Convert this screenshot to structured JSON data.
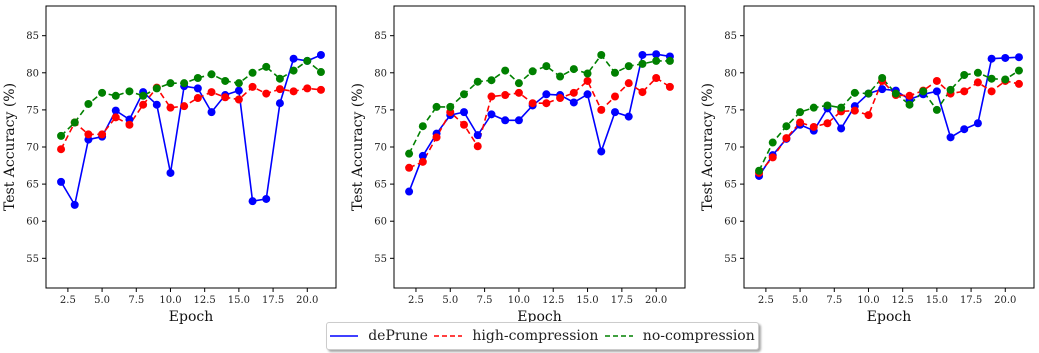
{
  "chart_data": {
    "type": "line",
    "legend": {
      "placement": "bottom-center",
      "entries": [
        {
          "label": "dePrune",
          "color": "#0000ff",
          "style": "solid"
        },
        {
          "label": "high-compression",
          "color": "#ff0000",
          "style": "dashed"
        },
        {
          "label": "no-compression",
          "color": "#008000",
          "style": "dashed"
        }
      ]
    },
    "x_ticks": [
      "2.5",
      "5.0",
      "7.5",
      "10.0",
      "12.5",
      "15.0",
      "17.5",
      "20.0"
    ],
    "y_ticks": [
      "55",
      "60",
      "65",
      "70",
      "75",
      "80",
      "85"
    ],
    "panels": [
      {
        "xlabel": "Epoch",
        "ylabel": "Test Accuracy (%)",
        "xlim": [
          0.9,
          22.1
        ],
        "ylim": [
          51.0,
          89.0
        ],
        "x": [
          2,
          3,
          4,
          5,
          6,
          7,
          8,
          9,
          10,
          11,
          12,
          13,
          14,
          15,
          16,
          17,
          18,
          19,
          20,
          21
        ],
        "series": [
          {
            "name": "dePrune",
            "color": "#0000ff",
            "dash": "solid",
            "values": [
              65.3,
              62.2,
              71.0,
              71.4,
              74.9,
              73.7,
              77.4,
              75.7,
              66.5,
              78.2,
              77.9,
              74.7,
              77.0,
              77.6,
              62.7,
              63.0,
              75.9,
              81.9,
              81.6,
              82.4
            ]
          },
          {
            "name": "high-compression",
            "color": "#ff0000",
            "dash": "dashed",
            "values": [
              69.7,
              73.3,
              71.7,
              71.7,
              74.0,
              73.0,
              75.7,
              78.0,
              75.3,
              75.5,
              76.6,
              77.4,
              76.7,
              76.4,
              78.1,
              77.2,
              77.8,
              77.5,
              77.9,
              77.7
            ]
          },
          {
            "name": "no-compression",
            "color": "#008000",
            "dash": "dashed",
            "values": [
              71.5,
              73.3,
              75.8,
              77.3,
              76.9,
              77.5,
              76.9,
              77.9,
              78.6,
              78.6,
              79.3,
              79.8,
              78.9,
              78.6,
              80.0,
              80.8,
              79.2,
              80.3,
              81.6,
              80.1
            ]
          }
        ]
      },
      {
        "xlabel": "Epoch",
        "ylabel": "Test Accuracy (%)",
        "xlim": [
          0.9,
          22.1
        ],
        "ylim": [
          51.0,
          89.0
        ],
        "x": [
          2,
          3,
          4,
          5,
          6,
          7,
          8,
          9,
          10,
          11,
          12,
          13,
          14,
          15,
          16,
          17,
          18,
          19,
          20,
          21
        ],
        "series": [
          {
            "name": "dePrune",
            "color": "#0000ff",
            "dash": "solid",
            "values": [
              64.0,
              68.8,
              71.8,
              74.3,
              74.7,
              71.6,
              74.4,
              73.6,
              73.6,
              75.6,
              77.1,
              77.0,
              76.0,
              77.1,
              69.4,
              74.7,
              74.1,
              82.4,
              82.5,
              82.2
            ]
          },
          {
            "name": "high-compression",
            "color": "#ff0000",
            "dash": "dashed",
            "values": [
              67.2,
              68.0,
              71.3,
              74.7,
              73.0,
              70.1,
              76.8,
              77.0,
              77.3,
              75.9,
              75.9,
              76.6,
              77.3,
              78.9,
              75.0,
              76.8,
              78.6,
              77.4,
              79.3,
              78.1
            ]
          },
          {
            "name": "no-compression",
            "color": "#008000",
            "dash": "dashed",
            "values": [
              69.1,
              72.8,
              75.4,
              75.4,
              77.1,
              78.8,
              79.0,
              80.3,
              78.6,
              80.2,
              80.9,
              79.5,
              80.5,
              79.9,
              82.4,
              80.0,
              80.9,
              81.2,
              81.6,
              81.6
            ]
          }
        ]
      },
      {
        "xlabel": "Epoch",
        "ylabel": "Test Accuracy (%)",
        "xlim": [
          0.9,
          22.1
        ],
        "ylim": [
          51.0,
          89.0
        ],
        "x": [
          2,
          3,
          4,
          5,
          6,
          7,
          8,
          9,
          10,
          11,
          12,
          13,
          14,
          15,
          16,
          17,
          18,
          19,
          20,
          21
        ],
        "series": [
          {
            "name": "dePrune",
            "color": "#0000ff",
            "dash": "solid",
            "values": [
              66.1,
              68.9,
              71.1,
              73.0,
              72.2,
              75.2,
              72.5,
              75.5,
              77.2,
              77.8,
              77.6,
              76.4,
              77.1,
              77.5,
              71.3,
              72.4,
              73.2,
              81.9,
              82.0,
              82.1
            ]
          },
          {
            "name": "high-compression",
            "color": "#ff0000",
            "dash": "dashed",
            "values": [
              66.5,
              68.6,
              71.2,
              73.3,
              72.7,
              73.2,
              74.8,
              74.9,
              74.3,
              78.9,
              77.0,
              76.9,
              77.6,
              78.9,
              77.2,
              77.5,
              78.7,
              77.5,
              78.9,
              78.5
            ]
          },
          {
            "name": "no-compression",
            "color": "#008000",
            "dash": "dashed",
            "values": [
              66.8,
              70.6,
              72.8,
              74.7,
              75.3,
              75.6,
              75.3,
              77.3,
              77.2,
              79.3,
              77.2,
              75.7,
              77.5,
              75.0,
              77.7,
              79.7,
              80.0,
              79.2,
              79.1,
              80.3
            ]
          }
        ]
      }
    ]
  }
}
